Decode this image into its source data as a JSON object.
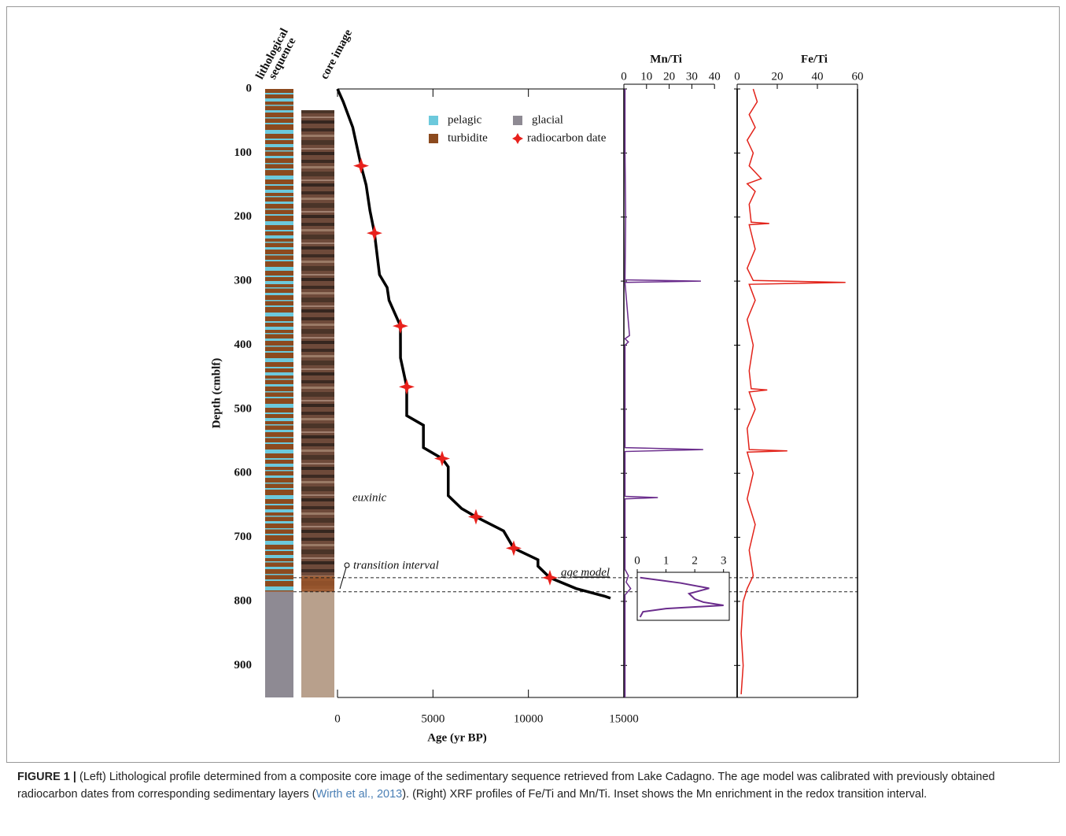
{
  "figure": {
    "column_labels": {
      "lithological_sequence": [
        "lithological",
        "sequence"
      ],
      "core_image": "core image"
    },
    "legend": [
      {
        "name": "pelagic",
        "color": "#6cc9dc"
      },
      {
        "name": "turbidite",
        "color": "#8c4a1e"
      },
      {
        "name": "glacial",
        "color": "#8e8a93"
      }
    ],
    "annotations": {
      "euxinic": "euxinic",
      "transition": "transition interval"
    },
    "caption": {
      "label": "FIGURE 1 |",
      "before": " (Left) Lithological profile determined from a composite core image of the sedimentary sequence retrieved from Lake Cadagno. The age model was calibrated with previously obtained radiocarbon dates from corresponding sedimentary layers (",
      "citation": "Wirth et al., 2013",
      "after": "). (Right) XRF profiles of Fe/Ti and Mn/Ti. Inset shows the Mn enrichment in the redox transition interval."
    }
  },
  "chart_data": [
    {
      "type": "line",
      "x_label": "Age (yr BP)",
      "y_label": "Depth (cmblf)",
      "xlim": [
        0,
        15000
      ],
      "xticks": [
        0,
        5000,
        10000,
        15000
      ],
      "ylim": [
        0,
        950
      ],
      "yticks": [
        0,
        100,
        200,
        300,
        400,
        500,
        600,
        700,
        800,
        900
      ],
      "reference_lines": [
        763,
        785
      ],
      "series": [
        {
          "name": "age model",
          "color": "#000000",
          "x": [
            0,
            300,
            800,
            1236,
            1500,
            1700,
            1936,
            2200,
            2600,
            2700,
            3296,
            3300,
            3626,
            3626,
            4500,
            4500,
            5480,
            5800,
            5800,
            6500,
            7252,
            8700,
            9230,
            10500,
            10500,
            11125,
            12500,
            14000,
            14300
          ],
          "values": [
            0,
            20,
            60,
            120,
            150,
            190,
            225,
            290,
            310,
            330,
            370,
            420,
            465,
            510,
            525,
            560,
            577,
            590,
            635,
            655,
            668,
            690,
            717,
            735,
            745,
            763,
            780,
            792,
            795
          ]
        },
        {
          "name": "radiocarbon date",
          "color": "#e8211c",
          "type": "scatter",
          "x": [
            1236,
            1936,
            3296,
            3626,
            5480,
            7252,
            9230,
            11125
          ],
          "values": [
            120,
            225,
            370,
            465,
            577,
            668,
            717,
            763
          ]
        }
      ]
    },
    {
      "type": "profile",
      "title": "Mn/Ti",
      "color": "#6a2c8c",
      "xlim": [
        0,
        50
      ],
      "xticks": [
        0,
        10,
        20,
        30,
        40
      ],
      "depth": [
        0,
        100,
        200,
        298,
        300,
        302,
        385,
        390,
        395,
        400,
        560,
        563,
        566,
        636,
        638,
        640,
        750,
        760,
        770,
        780,
        790,
        950
      ],
      "values": [
        0.5,
        0.5,
        0.8,
        0.5,
        34,
        0.5,
        2.5,
        0.5,
        2,
        0.5,
        0.5,
        35,
        0.5,
        0.5,
        15,
        0.5,
        0.5,
        2,
        1,
        3,
        0.5,
        0.5
      ]
    },
    {
      "type": "profile",
      "title": "Fe/Ti",
      "color": "#e2231a",
      "xlim": [
        0,
        60
      ],
      "xticks": [
        0,
        20,
        40,
        60
      ],
      "depth": [
        0,
        20,
        40,
        60,
        80,
        100,
        120,
        140,
        148,
        160,
        180,
        208,
        210,
        212,
        250,
        280,
        299,
        302,
        305,
        330,
        360,
        400,
        440,
        468,
        470,
        473,
        500,
        530,
        563,
        565,
        567,
        600,
        640,
        680,
        720,
        760,
        780,
        800,
        850,
        900,
        945
      ],
      "values": [
        8,
        10,
        6,
        9,
        5,
        8,
        6,
        12,
        5,
        9,
        6,
        7,
        16,
        6,
        9,
        5,
        8,
        54,
        6,
        9,
        5,
        8,
        6,
        7,
        15,
        6,
        9,
        5,
        6,
        25,
        5,
        8,
        5,
        9,
        6,
        8,
        5,
        3,
        2,
        3,
        2
      ]
    },
    {
      "type": "inset",
      "color": "#6a2c8c",
      "xlim": [
        0,
        3.2
      ],
      "xticks": [
        0,
        1,
        2,
        3
      ],
      "ylim": [
        750,
        795
      ],
      "depth": [
        755,
        760,
        765,
        770,
        775,
        778,
        781,
        784,
        787,
        792
      ],
      "values": [
        0.1,
        1.5,
        2.5,
        1.8,
        2,
        2.3,
        3,
        1,
        0.2,
        0.1
      ]
    }
  ]
}
